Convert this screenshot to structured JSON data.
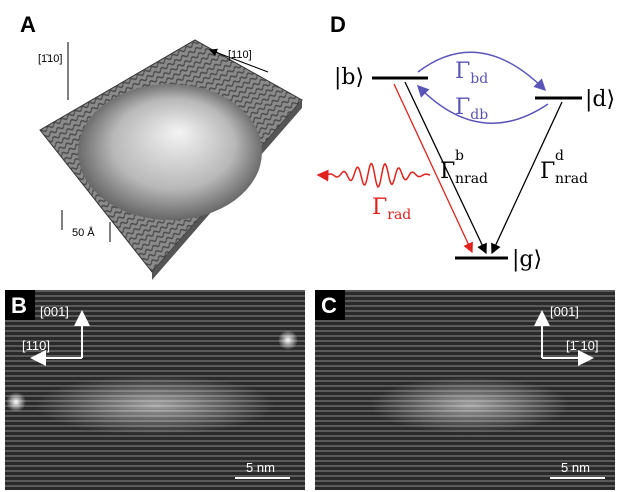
{
  "panels": {
    "A": {
      "label": "A",
      "directions": [
        "[1̄10]",
        "[110]"
      ],
      "scale_bar": "50 Å"
    },
    "B": {
      "label": "B",
      "directions": [
        "[001]",
        "[110]"
      ],
      "scale_bar": "5 nm"
    },
    "C": {
      "label": "C",
      "directions": [
        "[001]",
        "[1̄ 10]"
      ],
      "scale_bar": "5 nm"
    },
    "D": {
      "label": "D",
      "states": [
        "|b⟩",
        "|d⟩",
        "|g⟩"
      ],
      "rates": [
        {
          "symbol": "Γ",
          "sub": "bd"
        },
        {
          "symbol": "Γ",
          "sub": "db"
        },
        {
          "symbol": "Γ",
          "sup": "b",
          "sub": "nrad"
        },
        {
          "symbol": "Γ",
          "sup": "d",
          "sub": "nrad"
        },
        {
          "symbol": "Γ",
          "sub": "rad"
        }
      ]
    }
  }
}
